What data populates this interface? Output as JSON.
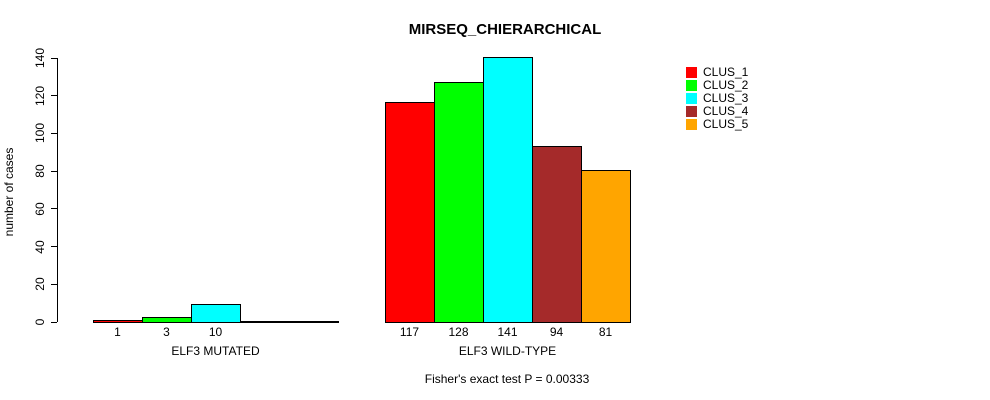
{
  "title": "MIRSEQ_CHIERARCHICAL",
  "footnote": "Fisher's exact test P = 0.00333",
  "y_axis": {
    "label": "number of cases",
    "ticks": [
      0,
      20,
      40,
      60,
      80,
      100,
      120,
      140
    ]
  },
  "legend": {
    "items": [
      {
        "label": "CLUS_1",
        "color": "#FF0000"
      },
      {
        "label": "CLUS_2",
        "color": "#00FF00"
      },
      {
        "label": "CLUS_3",
        "color": "#00FFFF"
      },
      {
        "label": "CLUS_4",
        "color": "#A52A2A"
      },
      {
        "label": "CLUS_5",
        "color": "#FFA500"
      }
    ]
  },
  "chart_data": {
    "type": "bar",
    "title": "MIRSEQ_CHIERARCHICAL",
    "xlabel": "",
    "ylabel": "number of cases",
    "ylim": [
      0,
      140
    ],
    "yticks": [
      0,
      20,
      40,
      60,
      80,
      100,
      120,
      140
    ],
    "grid": false,
    "legend_position": "right",
    "series_names": [
      "CLUS_1",
      "CLUS_2",
      "CLUS_3",
      "CLUS_4",
      "CLUS_5"
    ],
    "colors": [
      "#FF0000",
      "#00FF00",
      "#00FFFF",
      "#A52A2A",
      "#FFA500"
    ],
    "groups": [
      {
        "label": "ELF3 MUTATED",
        "values": [
          1,
          3,
          10,
          0,
          0
        ],
        "bar_labels": [
          "1",
          "3",
          "10",
          "",
          ""
        ]
      },
      {
        "label": "ELF3 WILD-TYPE",
        "values": [
          117,
          128,
          141,
          94,
          81
        ],
        "bar_labels": [
          "117",
          "128",
          "141",
          "94",
          "81"
        ]
      }
    ],
    "annotation": "Fisher's exact test P = 0.00333"
  }
}
